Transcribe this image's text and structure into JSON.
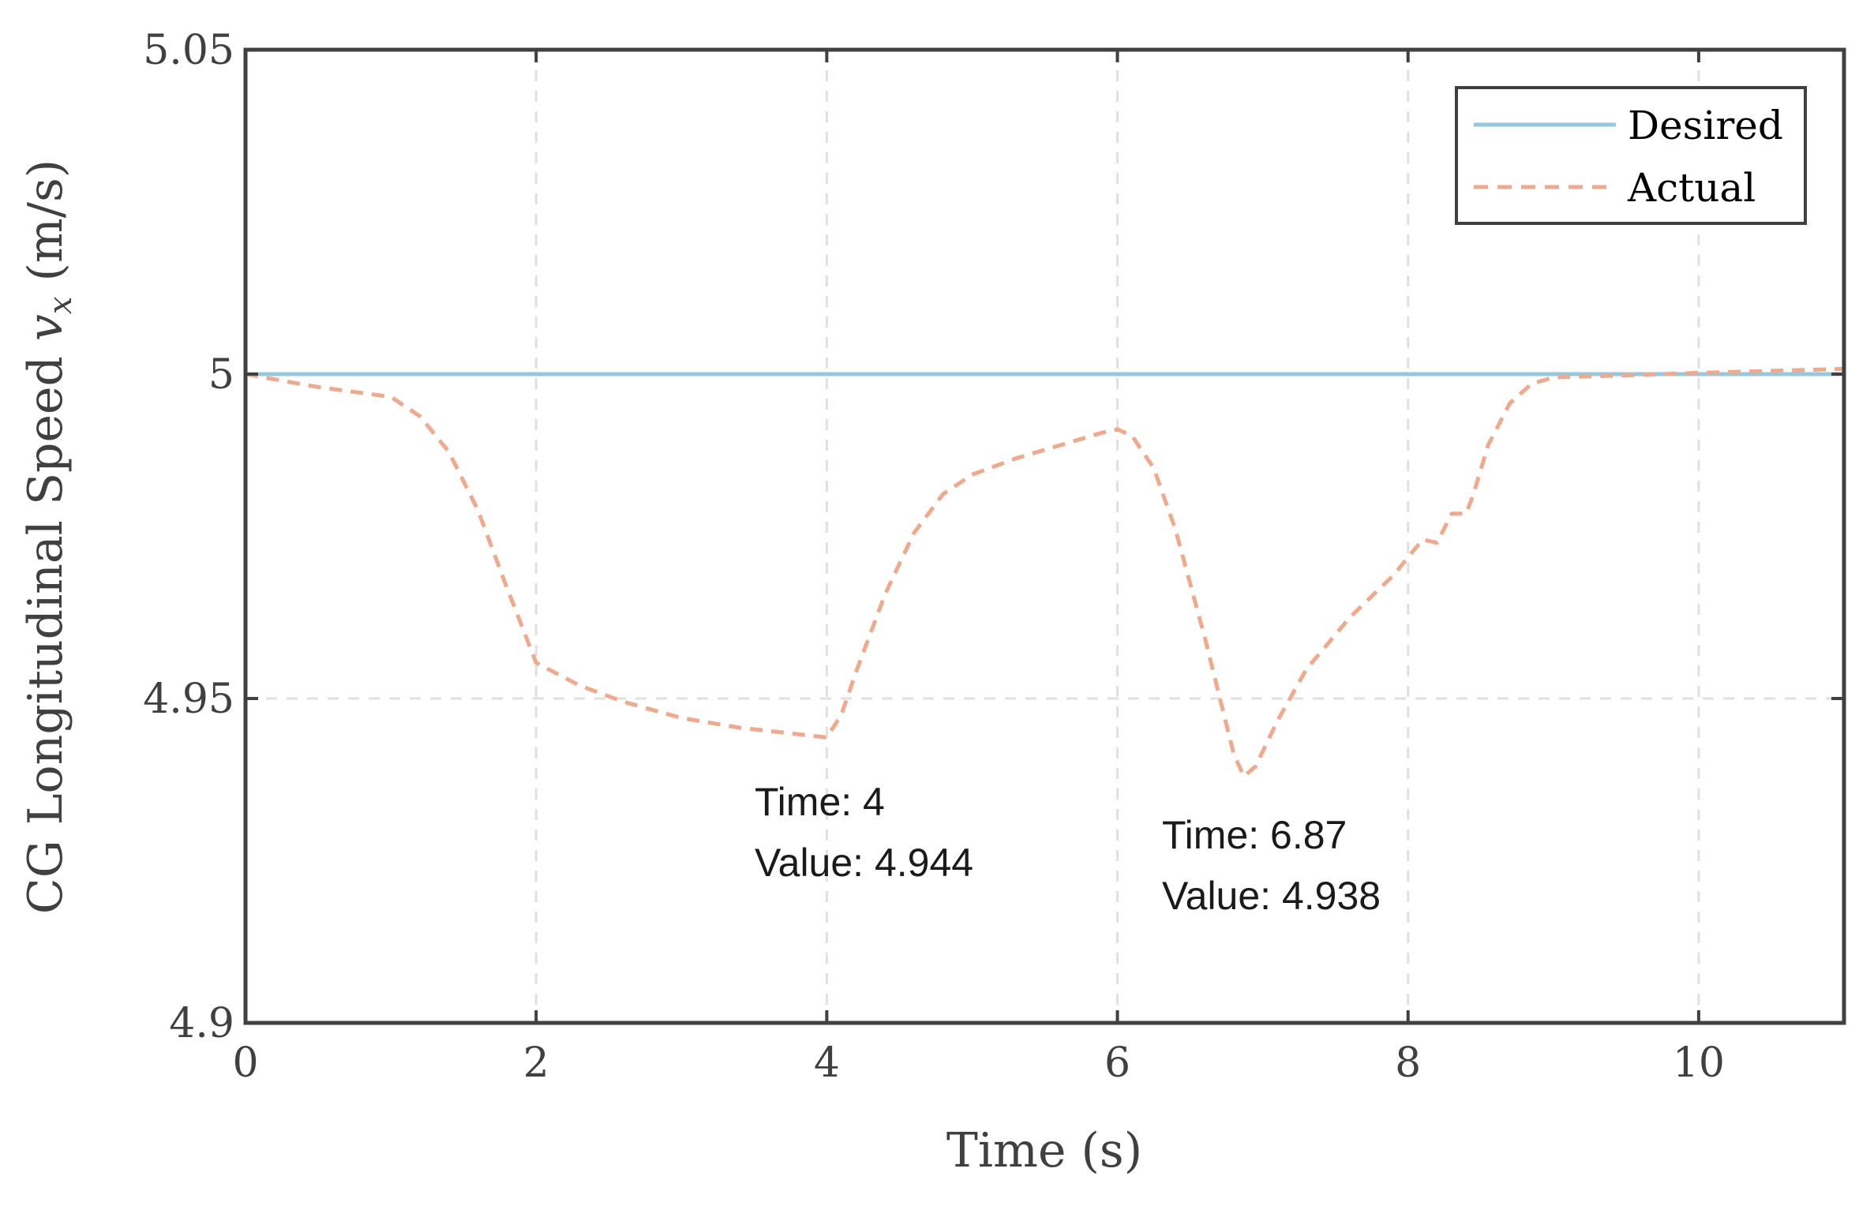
{
  "chart_data": {
    "type": "line",
    "title": "",
    "xlabel": "Time (s)",
    "ylabel_prefix": "CG Longitudinal Speed ",
    "ylabel_var": "v",
    "ylabel_sub": "x",
    "ylabel_unit": " (m/s)",
    "xlim": [
      0,
      11
    ],
    "ylim": [
      4.9,
      5.05
    ],
    "xticks": [
      0,
      2,
      4,
      6,
      8,
      10
    ],
    "xtick_labels": [
      "0",
      "2",
      "4",
      "6",
      "8",
      "10"
    ],
    "yticks": [
      4.9,
      4.95,
      5.0,
      5.05
    ],
    "ytick_labels": [
      "4.9",
      "4.95",
      "5",
      "5.05"
    ],
    "grid": true,
    "legend_position": "top-right",
    "colors": {
      "desired": "#93c9de",
      "actual": "#f2a88a",
      "axis": "#404040",
      "grid": "#e0e0e0"
    },
    "series": [
      {
        "name": "Desired",
        "style": "solid",
        "x": [
          0,
          11
        ],
        "y": [
          5.0,
          5.0
        ]
      },
      {
        "name": "Actual",
        "style": "dashed",
        "x": [
          0,
          0.5,
          1.0,
          1.2,
          1.4,
          1.6,
          1.8,
          2.0,
          2.3,
          2.6,
          3.0,
          3.4,
          3.8,
          4.0,
          4.1,
          4.2,
          4.4,
          4.6,
          4.8,
          5.0,
          5.3,
          5.6,
          5.9,
          6.0,
          6.1,
          6.25,
          6.4,
          6.6,
          6.8,
          6.87,
          6.95,
          7.1,
          7.3,
          7.6,
          7.9,
          8.1,
          8.2,
          8.3,
          8.4,
          8.45,
          8.55,
          8.7,
          8.85,
          9.0,
          9.5,
          10.0,
          10.5,
          11.0
        ],
        "y": [
          5.0,
          4.998,
          4.9965,
          4.9935,
          4.988,
          4.979,
          4.967,
          4.9555,
          4.952,
          4.9495,
          4.947,
          4.9455,
          4.9445,
          4.944,
          4.9475,
          4.954,
          4.966,
          4.9755,
          4.9815,
          4.9845,
          4.987,
          4.989,
          4.991,
          4.9915,
          4.9905,
          4.9855,
          4.976,
          4.9595,
          4.9415,
          4.938,
          4.9395,
          4.9465,
          4.9545,
          4.9625,
          4.969,
          4.9745,
          4.974,
          4.9785,
          4.9785,
          4.9815,
          4.989,
          4.9955,
          4.9985,
          4.9995,
          4.9998,
          5.0002,
          5.0005,
          5.0008
        ]
      }
    ],
    "annotations": [
      {
        "time_label": "Time: 4",
        "value_label": "Value: 4.944",
        "x": 4.0,
        "y": 4.944
      },
      {
        "time_label": "Time: 6.87",
        "value_label": "Value: 4.938",
        "x": 6.87,
        "y": 4.938
      }
    ]
  }
}
